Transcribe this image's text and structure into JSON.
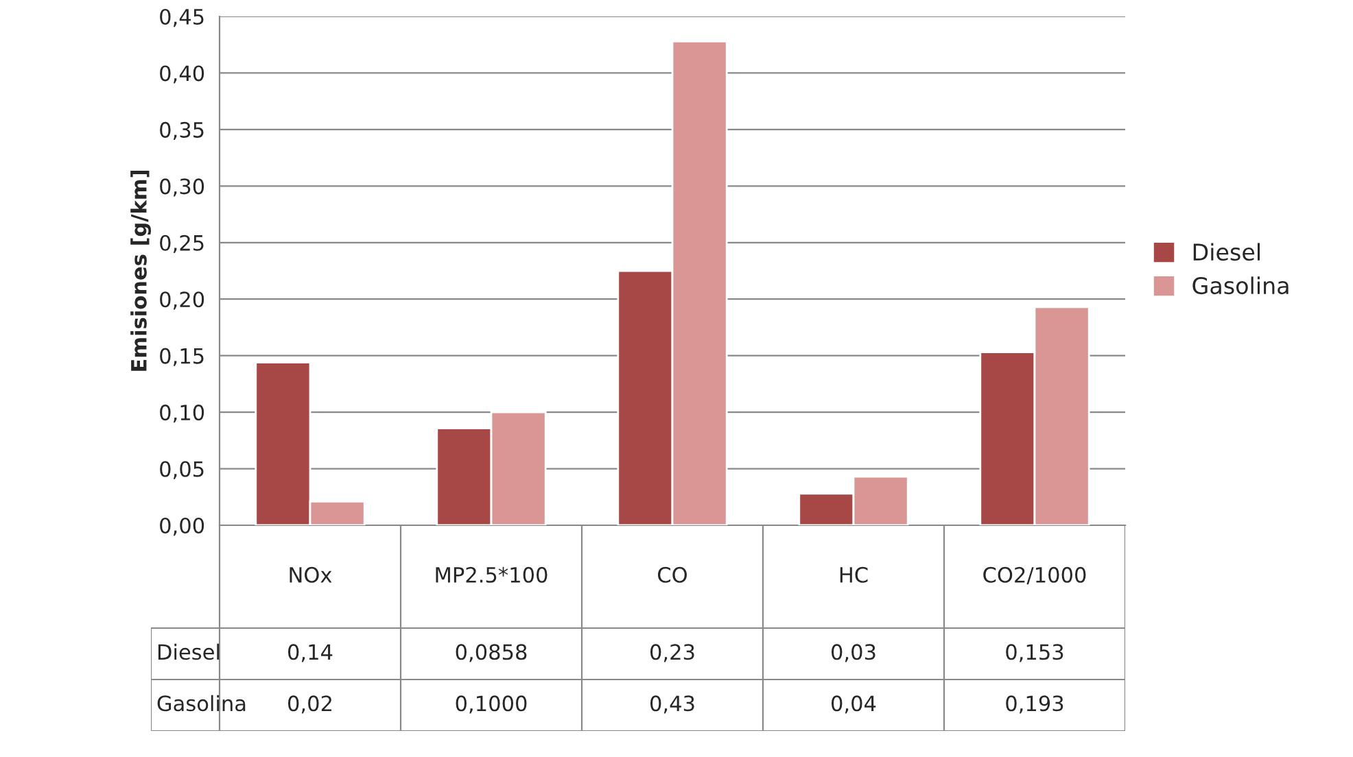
{
  "chart_data": {
    "type": "bar",
    "ylabel": "Emisiones [g/km]",
    "categories": [
      "NOx",
      "MP2.5*100",
      "CO",
      "HC",
      "CO2/1000"
    ],
    "series": [
      {
        "name": "Diesel",
        "color": "#a84846",
        "values": [
          0.144,
          0.0858,
          0.225,
          0.028,
          0.153
        ],
        "value_labels": [
          "0,14",
          "0,0858",
          "0,23",
          "0,03",
          "0,153"
        ]
      },
      {
        "name": "Gasolina",
        "color": "#d99694",
        "values": [
          0.021,
          0.1,
          0.428,
          0.043,
          0.193
        ],
        "value_labels": [
          "0,02",
          "0,1000",
          "0,43",
          "0,04",
          "0,193"
        ]
      }
    ],
    "ylim": [
      0,
      0.45
    ],
    "yticks": [
      {
        "value": 0,
        "label": "0,00"
      },
      {
        "value": 0.05,
        "label": "0,05"
      },
      {
        "value": 0.1,
        "label": "0,10"
      },
      {
        "value": 0.15,
        "label": "0,15"
      },
      {
        "value": 0.2,
        "label": "0,20"
      },
      {
        "value": 0.25,
        "label": "0,25"
      },
      {
        "value": 0.3,
        "label": "0,30"
      },
      {
        "value": 0.35,
        "label": "0,35"
      },
      {
        "value": 0.4,
        "label": "0,40"
      },
      {
        "value": 0.45,
        "label": "0,45"
      }
    ],
    "grid": "y",
    "legend": "right"
  }
}
